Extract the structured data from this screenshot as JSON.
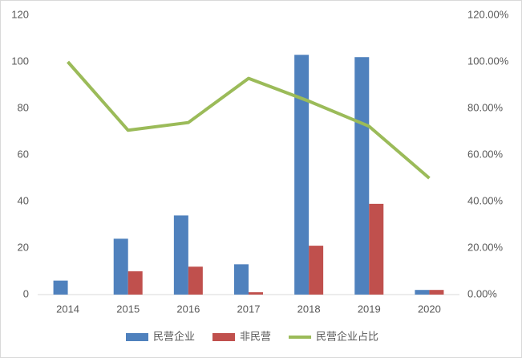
{
  "chart_data": {
    "type": "bar-line",
    "categories": [
      "2014",
      "2015",
      "2016",
      "2017",
      "2018",
      "2019",
      "2020"
    ],
    "series": [
      {
        "name": "民营企业",
        "type": "bar",
        "color": "#4f81bd",
        "values": [
          6,
          24,
          34,
          13,
          103,
          102,
          2
        ]
      },
      {
        "name": "非民营",
        "type": "bar",
        "color": "#c0504d",
        "values": [
          0,
          10,
          12,
          1,
          21,
          39,
          2
        ]
      },
      {
        "name": "民营企业占比",
        "type": "line",
        "axis": "y2",
        "color": "#9bbb59",
        "values": [
          100,
          70.6,
          73.9,
          92.9,
          83.1,
          72.3,
          50
        ]
      }
    ],
    "ylim": [
      0,
      120
    ],
    "yticks": [
      0,
      20,
      40,
      60,
      80,
      100,
      120
    ],
    "y2lim": [
      0,
      120
    ],
    "y2ticks": [
      {
        "value": 0,
        "label": "0.00%"
      },
      {
        "value": 20,
        "label": "20.00%"
      },
      {
        "value": 40,
        "label": "40.00%"
      },
      {
        "value": 60,
        "label": "60.00%"
      },
      {
        "value": 80,
        "label": "80.00%"
      },
      {
        "value": 100,
        "label": "100.00%"
      },
      {
        "value": 120,
        "label": "120.00%"
      }
    ],
    "grid": false,
    "legend": "bottom"
  }
}
